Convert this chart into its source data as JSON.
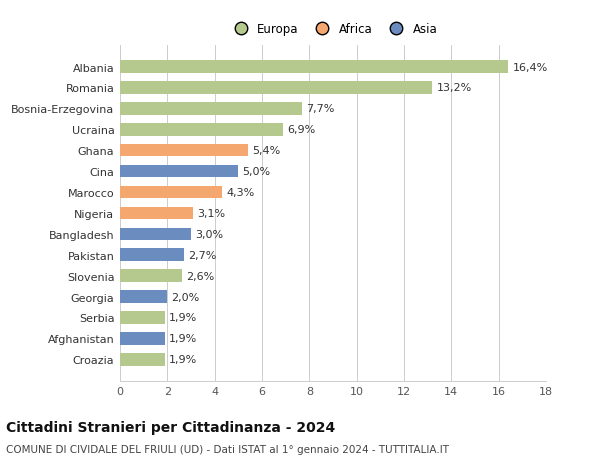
{
  "categories": [
    "Croazia",
    "Afghanistan",
    "Serbia",
    "Georgia",
    "Slovenia",
    "Pakistan",
    "Bangladesh",
    "Nigeria",
    "Marocco",
    "Cina",
    "Ghana",
    "Ucraina",
    "Bosnia-Erzegovina",
    "Romania",
    "Albania"
  ],
  "values": [
    1.9,
    1.9,
    1.9,
    2.0,
    2.6,
    2.7,
    3.0,
    3.1,
    4.3,
    5.0,
    5.4,
    6.9,
    7.7,
    13.2,
    16.4
  ],
  "labels": [
    "1,9%",
    "1,9%",
    "1,9%",
    "2,0%",
    "2,6%",
    "2,7%",
    "3,0%",
    "3,1%",
    "4,3%",
    "5,0%",
    "5,4%",
    "6,9%",
    "7,7%",
    "13,2%",
    "16,4%"
  ],
  "continents": [
    "Europa",
    "Asia",
    "Europa",
    "Asia",
    "Europa",
    "Asia",
    "Asia",
    "Africa",
    "Africa",
    "Asia",
    "Africa",
    "Europa",
    "Europa",
    "Europa",
    "Europa"
  ],
  "colors": {
    "Europa": "#b5c98e",
    "Africa": "#f4a870",
    "Asia": "#6b8cbe"
  },
  "legend_labels": [
    "Europa",
    "Africa",
    "Asia"
  ],
  "legend_colors": [
    "#b5c98e",
    "#f4a870",
    "#6b8cbe"
  ],
  "title": "Cittadini Stranieri per Cittadinanza - 2024",
  "subtitle": "COMUNE DI CIVIDALE DEL FRIULI (UD) - Dati ISTAT al 1° gennaio 2024 - TUTTITALIA.IT",
  "xlim": [
    0,
    18
  ],
  "xticks": [
    0,
    2,
    4,
    6,
    8,
    10,
    12,
    14,
    16,
    18
  ],
  "background_color": "#ffffff",
  "grid_color": "#cccccc",
  "bar_height": 0.6,
  "label_fontsize": 8,
  "tick_fontsize": 8,
  "title_fontsize": 10,
  "subtitle_fontsize": 7.5
}
